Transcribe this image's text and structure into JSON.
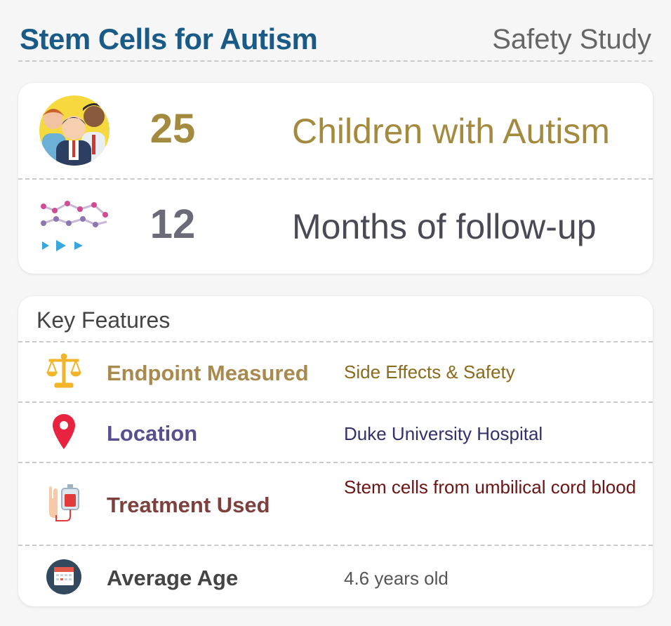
{
  "header": {
    "title": "Stem Cells for Autism",
    "subtitle": "Safety Study"
  },
  "stats": [
    {
      "icon": "people-group-icon",
      "number": "25",
      "label": "Children with Autism",
      "color": "#a38a3e"
    },
    {
      "icon": "line-chart-icon",
      "number": "12",
      "label": "Months of follow-up",
      "color": "#6b6b78"
    }
  ],
  "features": {
    "title": "Key Features",
    "rows": [
      {
        "icon": "scales-icon",
        "label": "Endpoint Measured",
        "value": "Side Effects & Safety",
        "label_color": "#a88a4e",
        "value_color": "#8a6a1c"
      },
      {
        "icon": "map-pin-icon",
        "label": "Location",
        "value": "Duke University Hospital",
        "label_color": "#5a4f8e",
        "value_color": "#33306b"
      },
      {
        "icon": "iv-bag-arm-icon",
        "label": "Treatment Used",
        "value": "Stem cells from umbilical cord blood",
        "label_color": "#7e403c",
        "value_color": "#6a1414"
      },
      {
        "icon": "calendar-icon",
        "label": "Average Age",
        "value": "4.6 years old",
        "label_color": "#444444",
        "value_color": "#555555"
      }
    ]
  }
}
